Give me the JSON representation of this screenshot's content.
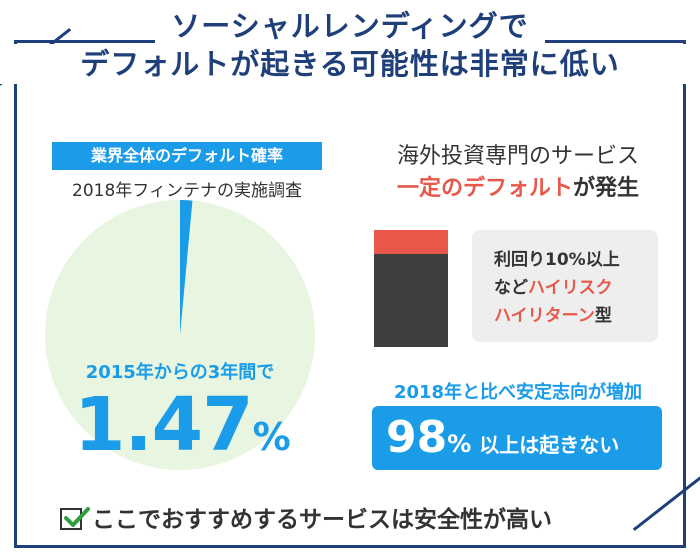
{
  "title": {
    "line1": "ソーシャルレンディングで",
    "line2": "デフォルトが起きる可能性は非常に低い"
  },
  "left": {
    "tag": "業界全体のデフォルト確率",
    "survey": "2018年フィンテナの実施調査",
    "period": "2015年からの3年間で",
    "value": "1.47",
    "unit": "%",
    "pie_default_percent": 1.47
  },
  "right": {
    "heading1": "海外投資専門のサービス",
    "heading2_red": "一定のデフォルト",
    "heading2_rest": "が発生",
    "note_line1": "利回り10%以上",
    "note_line2_prefix": "など",
    "note_line2_red": "ハイリスク",
    "note_line3_red": "ハイリターン",
    "note_line3_suffix": "型",
    "stability_heading": "2018年と比べ安定志向が増加",
    "stability_value": "98",
    "stability_unit": "%",
    "stability_text": "以上は起きない"
  },
  "footer": {
    "text": "ここでおすすめするサービスは安全性が高い",
    "icon": "checkbox-checked-icon"
  },
  "colors": {
    "navy": "#1e3f7a",
    "blue": "#1a9ce8",
    "red": "#e8574a",
    "dark": "#3f3f3f",
    "pie_fill": "#e8f5e0",
    "note_bg": "#eeeeee",
    "check_green": "#2e9e3e"
  }
}
